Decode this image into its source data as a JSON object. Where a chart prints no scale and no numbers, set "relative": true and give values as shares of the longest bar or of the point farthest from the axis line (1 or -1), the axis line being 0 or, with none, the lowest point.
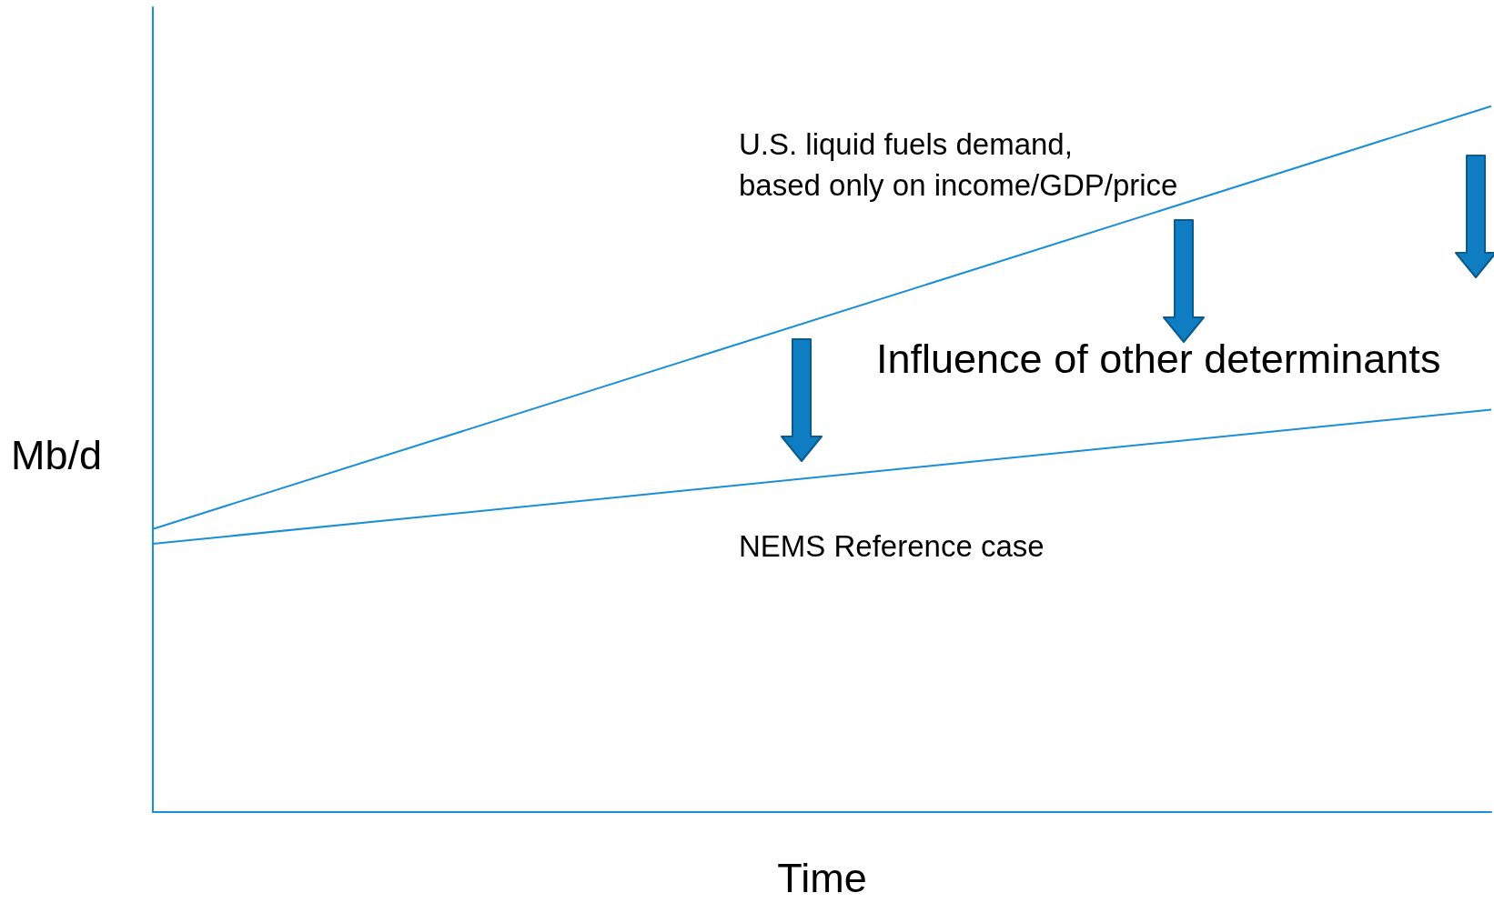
{
  "chart_data": {
    "type": "line",
    "relative": true,
    "xlabel": "Time",
    "ylabel": "Mb/d",
    "categories": [
      null,
      null
    ],
    "series": [
      {
        "name": "U.S. liquid fuels demand,\nbased only on income/GDP/price",
        "color": "#1a8fd6",
        "values": [
          0.401,
          1.0
        ]
      },
      {
        "name": "NEMS Reference case",
        "color": "#1a8fd6",
        "values": [
          0.38,
          0.57
        ]
      }
    ],
    "annotations": [
      "Influence of other determinants"
    ],
    "grid": false,
    "legend": false,
    "marker": "none",
    "line_style": "solid"
  }
}
